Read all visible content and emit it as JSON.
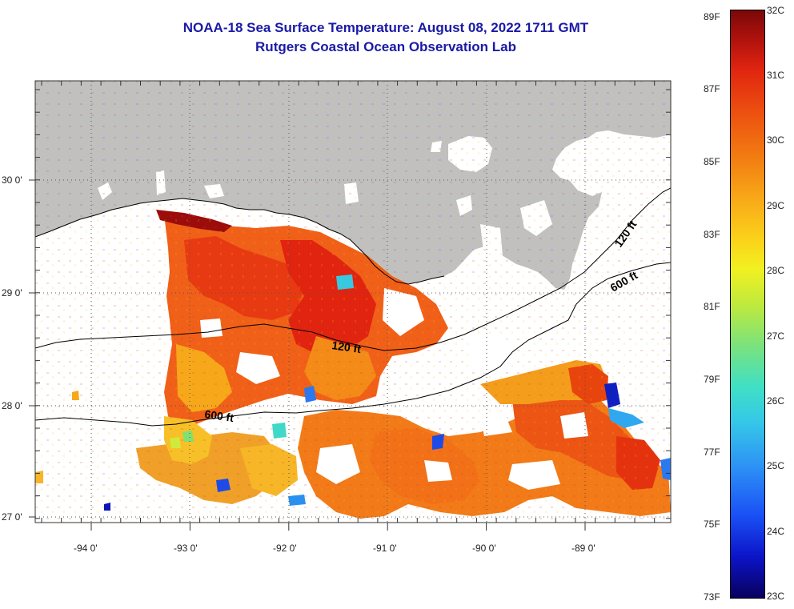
{
  "title_line1": "NOAA-18 Sea Surface Temperature:  August 08, 2022 1711 GMT",
  "title_line2": "Rutgers Coastal Ocean Observation Lab",
  "map": {
    "lon_ticks": [
      "-94 0'",
      "-93 0'",
      "-92 0'",
      "-91 0'",
      "-90 0'",
      "-89 0'"
    ],
    "lat_ticks": [
      "30 0'",
      "29 0'",
      "28 0'",
      "27 0'"
    ],
    "contours": [
      "120 ft",
      "600 ft",
      "120 ft",
      "600 ft"
    ],
    "colors": {
      "land": "#c0c0c0",
      "water_nodata": "#ffffff",
      "grid": "#555555"
    }
  },
  "colorbar": {
    "fahrenheit": [
      "89F",
      "87F",
      "85F",
      "83F",
      "81F",
      "79F",
      "77F",
      "75F",
      "73F"
    ],
    "celsius": [
      "32C",
      "31C",
      "30C",
      "29C",
      "28C",
      "27C",
      "26C",
      "25C",
      "24C",
      "23C"
    ]
  }
}
